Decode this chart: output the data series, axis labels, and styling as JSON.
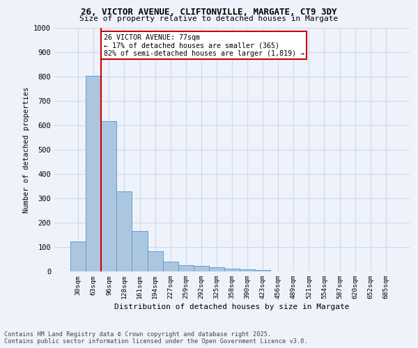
{
  "title1": "26, VICTOR AVENUE, CLIFTONVILLE, MARGATE, CT9 3DY",
  "title2": "Size of property relative to detached houses in Margate",
  "xlabel": "Distribution of detached houses by size in Margate",
  "ylabel": "Number of detached properties",
  "footer1": "Contains HM Land Registry data © Crown copyright and database right 2025.",
  "footer2": "Contains public sector information licensed under the Open Government Licence v3.0.",
  "bar_labels": [
    "30sqm",
    "63sqm",
    "96sqm",
    "128sqm",
    "161sqm",
    "194sqm",
    "227sqm",
    "259sqm",
    "292sqm",
    "325sqm",
    "358sqm",
    "390sqm",
    "423sqm",
    "456sqm",
    "489sqm",
    "521sqm",
    "554sqm",
    "587sqm",
    "620sqm",
    "652sqm",
    "685sqm"
  ],
  "bar_values": [
    123,
    802,
    618,
    330,
    165,
    82,
    40,
    27,
    22,
    18,
    12,
    9,
    5,
    0,
    0,
    0,
    0,
    0,
    0,
    0,
    0
  ],
  "bar_color": "#adc6e0",
  "bar_edgecolor": "#5a9fd4",
  "vline_x": 1.5,
  "annotation_title": "26 VICTOR AVENUE: 77sqm",
  "annotation_line1": "← 17% of detached houses are smaller (365)",
  "annotation_line2": "82% of semi-detached houses are larger (1,819) →",
  "annotation_box_color": "#ffffff",
  "annotation_border_color": "#cc0000",
  "vline_color": "#cc0000",
  "grid_color": "#d0d8e8",
  "bg_color": "#eef2fa",
  "ylim": [
    0,
    1000
  ],
  "yticks": [
    0,
    100,
    200,
    300,
    400,
    500,
    600,
    700,
    800,
    900,
    1000
  ]
}
